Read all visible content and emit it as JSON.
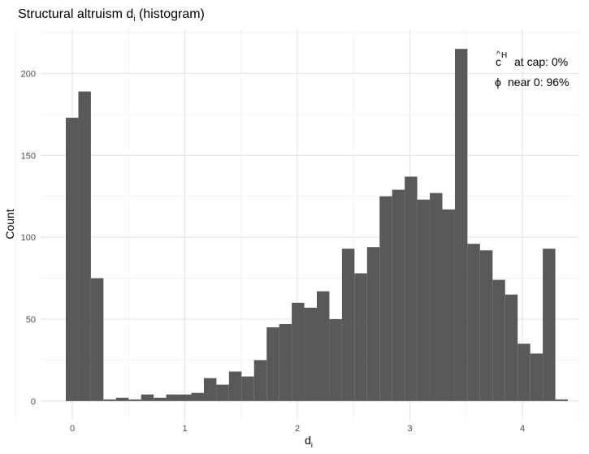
{
  "chart_data": {
    "type": "bar",
    "title": "Structural altruism",
    "title_symbol": "d",
    "title_subscript": "i",
    "title_suffix": "(histogram)",
    "xlabel": "d",
    "xlabel_subscript": "i",
    "ylabel": "Count",
    "xlim": [
      -0.15,
      4.48
    ],
    "ylim": [
      -12,
      227
    ],
    "x_ticks": [
      0,
      1,
      2,
      3,
      4
    ],
    "y_ticks": [
      0,
      50,
      100,
      150,
      200
    ],
    "grid": true,
    "bar_color": "#595959",
    "bin_width": 0.1235,
    "bins": [
      {
        "x": 0.0,
        "count": 173
      },
      {
        "x": 0.1235,
        "count": 189
      },
      {
        "x": 0.247,
        "count": 75
      },
      {
        "x": 0.3705,
        "count": 1
      },
      {
        "x": 0.494,
        "count": 2
      },
      {
        "x": 0.6175,
        "count": 1
      },
      {
        "x": 0.741,
        "count": 4
      },
      {
        "x": 0.8645,
        "count": 2
      },
      {
        "x": 0.988,
        "count": 4
      },
      {
        "x": 1.1115,
        "count": 4
      },
      {
        "x": 1.235,
        "count": 5
      },
      {
        "x": 1.3585,
        "count": 14
      },
      {
        "x": 1.482,
        "count": 10
      },
      {
        "x": 1.6055,
        "count": 18
      },
      {
        "x": 1.729,
        "count": 15
      },
      {
        "x": 1.8525,
        "count": 25
      },
      {
        "x": 1.976,
        "count": 45
      },
      {
        "x": 2.0995,
        "count": 47
      },
      {
        "x": 2.223,
        "count": 60
      },
      {
        "x": 2.3465,
        "count": 57
      },
      {
        "x": 2.47,
        "count": 67
      },
      {
        "x": 2.5935,
        "count": 50
      },
      {
        "x": 2.717,
        "count": 93
      },
      {
        "x": 2.8405,
        "count": 78
      },
      {
        "x": 2.964,
        "count": 94
      },
      {
        "x": 3.0875,
        "count": 125
      },
      {
        "x": 3.211,
        "count": 129
      },
      {
        "x": 3.3345,
        "count": 137
      },
      {
        "x": 3.458,
        "count": 123
      },
      {
        "x": 3.5815,
        "count": 127
      },
      {
        "x": 3.705,
        "count": 117
      },
      {
        "x": 3.8285,
        "count": 215
      },
      {
        "x": 3.952,
        "count": 96
      },
      {
        "x": 4.0755,
        "count": 92
      },
      {
        "x": 4.199,
        "count": 74
      },
      {
        "x": 4.3225,
        "count": 65
      },
      {
        "x": 4.446,
        "count": 35
      },
      {
        "x": 4.5695,
        "count": 29
      },
      {
        "x": 4.693,
        "count": 93
      },
      {
        "x": 4.8165,
        "count": 1
      }
    ],
    "annotations": {
      "cap_symbol": "c",
      "cap_superscript": "H",
      "cap_text": "at cap:  0%",
      "phi_symbol": "ϕ",
      "phi_text": "near 0:  96%"
    }
  }
}
